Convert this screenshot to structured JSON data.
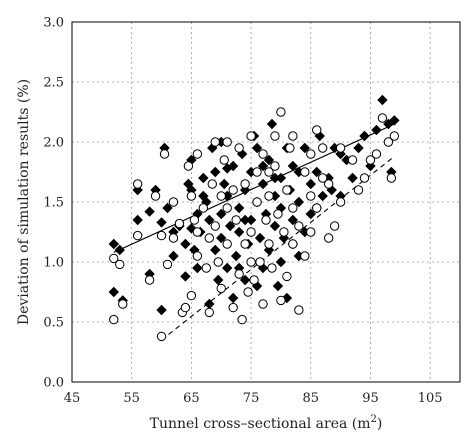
{
  "chart_data": {
    "type": "scatter",
    "xlabel": "Tunnel cross–sectional area (m",
    "xlabel_sup": "2",
    "xlabel_close": ")",
    "ylabel": "Deviation of simulation results (%)",
    "xlim": [
      45,
      110
    ],
    "ylim": [
      0,
      3
    ],
    "xticks": [
      "45",
      "55",
      "65",
      "75",
      "85",
      "95",
      "105"
    ],
    "yticks": [
      "0.0",
      "0.5",
      "1.0",
      "1.5",
      "2.0",
      "2.5",
      "3.0"
    ],
    "grid": true,
    "series": [
      {
        "marker": "diamond",
        "color": "#000000",
        "points": [
          [
            52,
            1.15
          ],
          [
            52,
            0.75
          ],
          [
            53,
            1.1
          ],
          [
            53.5,
            0.68
          ],
          [
            56,
            1.6
          ],
          [
            56,
            1.35
          ],
          [
            58,
            0.9
          ],
          [
            59,
            1.6
          ],
          [
            60,
            1.33
          ],
          [
            60,
            0.6
          ],
          [
            60.5,
            1.95
          ],
          [
            61,
            1.45
          ],
          [
            62,
            1.25
          ],
          [
            63,
            1.3
          ],
          [
            64,
            0.88
          ],
          [
            64,
            1.15
          ],
          [
            64.5,
            1.65
          ],
          [
            65,
            1.6
          ],
          [
            65,
            1.85
          ],
          [
            65.5,
            1.1
          ],
          [
            66,
            1.4
          ],
          [
            66,
            0.95
          ],
          [
            66.5,
            1.25
          ],
          [
            67,
            1.7
          ],
          [
            67.5,
            1.5
          ],
          [
            68,
            0.65
          ],
          [
            68,
            1.35
          ],
          [
            68.5,
            1.95
          ],
          [
            69,
            1.75
          ],
          [
            69,
            1.1
          ],
          [
            69.5,
            0.85
          ],
          [
            70,
            1.4
          ],
          [
            70,
            1.2
          ],
          [
            70.5,
            1.65
          ],
          [
            71,
            0.95
          ],
          [
            71,
            1.55
          ],
          [
            71.5,
            1.3
          ],
          [
            72,
            1.8
          ],
          [
            72,
            0.7
          ],
          [
            72.5,
            1.05
          ],
          [
            73,
            1.45
          ],
          [
            73,
            1.25
          ],
          [
            73.5,
            1.9
          ],
          [
            74,
            0.85
          ],
          [
            74,
            1.6
          ],
          [
            74.5,
            1.15
          ],
          [
            75,
            1.75
          ],
          [
            75,
            1.35
          ],
          [
            75.5,
            2.05
          ],
          [
            76,
            0.8
          ],
          [
            76,
            1.5
          ],
          [
            76.5,
            1.2
          ],
          [
            77,
            1.65
          ],
          [
            77,
            0.95
          ],
          [
            77.5,
            1.4
          ],
          [
            78,
            1.85
          ],
          [
            78,
            1.1
          ],
          [
            78.5,
            2.15
          ],
          [
            79,
            1.3
          ],
          [
            79,
            1.55
          ],
          [
            79.5,
            0.8
          ],
          [
            80,
            1.7
          ],
          [
            80,
            1.45
          ],
          [
            80.5,
            1.2
          ],
          [
            81,
            1.95
          ],
          [
            81,
            0.7
          ],
          [
            81.5,
            1.6
          ],
          [
            82,
            1.35
          ],
          [
            82,
            1.8
          ],
          [
            83,
            1.05
          ],
          [
            83,
            1.5
          ],
          [
            84,
            1.95
          ],
          [
            84,
            1.25
          ],
          [
            85,
            1.65
          ],
          [
            85,
            1.4
          ],
          [
            86,
            1.75
          ],
          [
            86.5,
            2.05
          ],
          [
            87,
            1.55
          ],
          [
            88,
            1.7
          ],
          [
            88.5,
            1.6
          ],
          [
            89,
            1.95
          ],
          [
            90,
            1.55
          ],
          [
            91,
            1.85
          ],
          [
            92,
            1.7
          ],
          [
            93,
            1.95
          ],
          [
            94,
            2.05
          ],
          [
            95,
            1.8
          ],
          [
            96,
            2.1
          ],
          [
            97,
            2.35
          ],
          [
            98,
            2.15
          ],
          [
            98.5,
            1.75
          ],
          [
            99,
            2.18
          ],
          [
            58,
            1.42
          ],
          [
            62,
            1.05
          ],
          [
            67,
            1.55
          ],
          [
            70,
            2.0
          ],
          [
            74,
            1.35
          ],
          [
            77,
            1.8
          ],
          [
            80,
            1.0
          ],
          [
            83,
            1.75
          ],
          [
            65,
            1.28
          ],
          [
            71,
            1.78
          ],
          [
            73,
            0.95
          ],
          [
            76,
            1.95
          ],
          [
            79,
            1.7
          ],
          [
            82,
            1.15
          ],
          [
            86,
            1.45
          ],
          [
            90,
            1.9
          ]
        ]
      },
      {
        "marker": "circle",
        "color": "#000000",
        "points": [
          [
            52,
            1.03
          ],
          [
            52,
            0.52
          ],
          [
            53,
            0.98
          ],
          [
            53.5,
            0.65
          ],
          [
            56,
            1.65
          ],
          [
            56,
            1.22
          ],
          [
            58,
            0.85
          ],
          [
            59,
            1.55
          ],
          [
            60,
            1.22
          ],
          [
            60,
            0.38
          ],
          [
            60.5,
            1.9
          ],
          [
            61,
            0.98
          ],
          [
            62,
            1.2
          ],
          [
            63,
            1.32
          ],
          [
            63.5,
            0.58
          ],
          [
            64,
            0.62
          ],
          [
            64.5,
            1.8
          ],
          [
            65,
            1.55
          ],
          [
            65,
            0.72
          ],
          [
            65.5,
            1.35
          ],
          [
            66,
            1.05
          ],
          [
            66,
            1.9
          ],
          [
            67,
            1.45
          ],
          [
            67.5,
            0.95
          ],
          [
            68,
            0.58
          ],
          [
            68,
            1.2
          ],
          [
            68.5,
            1.65
          ],
          [
            69,
            2.0
          ],
          [
            69,
            1.3
          ],
          [
            69.5,
            1.0
          ],
          [
            70,
            1.55
          ],
          [
            70,
            0.78
          ],
          [
            70.5,
            1.85
          ],
          [
            71,
            1.15
          ],
          [
            71,
            1.45
          ],
          [
            72,
            0.62
          ],
          [
            72,
            1.6
          ],
          [
            72.5,
            1.35
          ],
          [
            73,
            0.9
          ],
          [
            73,
            1.95
          ],
          [
            73.5,
            0.52
          ],
          [
            74,
            1.15
          ],
          [
            74,
            1.65
          ],
          [
            74.5,
            0.75
          ],
          [
            75,
            2.05
          ],
          [
            75,
            1.25
          ],
          [
            75.5,
            0.85
          ],
          [
            76,
            1.5
          ],
          [
            76,
            1.75
          ],
          [
            76.5,
            1.0
          ],
          [
            77,
            1.9
          ],
          [
            77,
            0.65
          ],
          [
            77.5,
            1.35
          ],
          [
            78,
            1.15
          ],
          [
            78,
            1.55
          ],
          [
            78.5,
            0.95
          ],
          [
            79,
            2.05
          ],
          [
            79,
            1.8
          ],
          [
            79.5,
            1.4
          ],
          [
            80,
            2.25
          ],
          [
            80,
            0.68
          ],
          [
            80.5,
            1.25
          ],
          [
            81,
            1.6
          ],
          [
            81,
            0.88
          ],
          [
            81.5,
            1.95
          ],
          [
            82,
            1.45
          ],
          [
            82,
            2.05
          ],
          [
            83,
            1.3
          ],
          [
            83,
            0.6
          ],
          [
            84,
            1.75
          ],
          [
            84,
            1.05
          ],
          [
            85,
            1.55
          ],
          [
            85,
            1.25
          ],
          [
            86,
            2.1
          ],
          [
            86,
            1.45
          ],
          [
            87,
            1.7
          ],
          [
            87,
            1.95
          ],
          [
            88,
            1.65
          ],
          [
            89,
            1.3
          ],
          [
            90,
            1.5
          ],
          [
            90,
            1.95
          ],
          [
            92,
            1.85
          ],
          [
            93,
            1.6
          ],
          [
            94,
            1.7
          ],
          [
            95,
            1.85
          ],
          [
            96,
            1.9
          ],
          [
            97,
            2.2
          ],
          [
            98,
            2.0
          ],
          [
            98.5,
            1.7
          ],
          [
            99,
            2.05
          ],
          [
            62,
            1.5
          ],
          [
            66,
            1.25
          ],
          [
            71,
            2.0
          ],
          [
            75,
            1.0
          ],
          [
            78,
            1.75
          ],
          [
            82,
            1.15
          ],
          [
            85,
            1.9
          ],
          [
            88,
            1.2
          ]
        ]
      }
    ],
    "lines": [
      {
        "style": "solid",
        "from": [
          52,
          1.08
        ],
        "to": [
          99,
          2.15
        ]
      },
      {
        "style": "dashed",
        "from": [
          60,
          0.35
        ],
        "to": [
          99,
          1.88
        ]
      }
    ]
  }
}
